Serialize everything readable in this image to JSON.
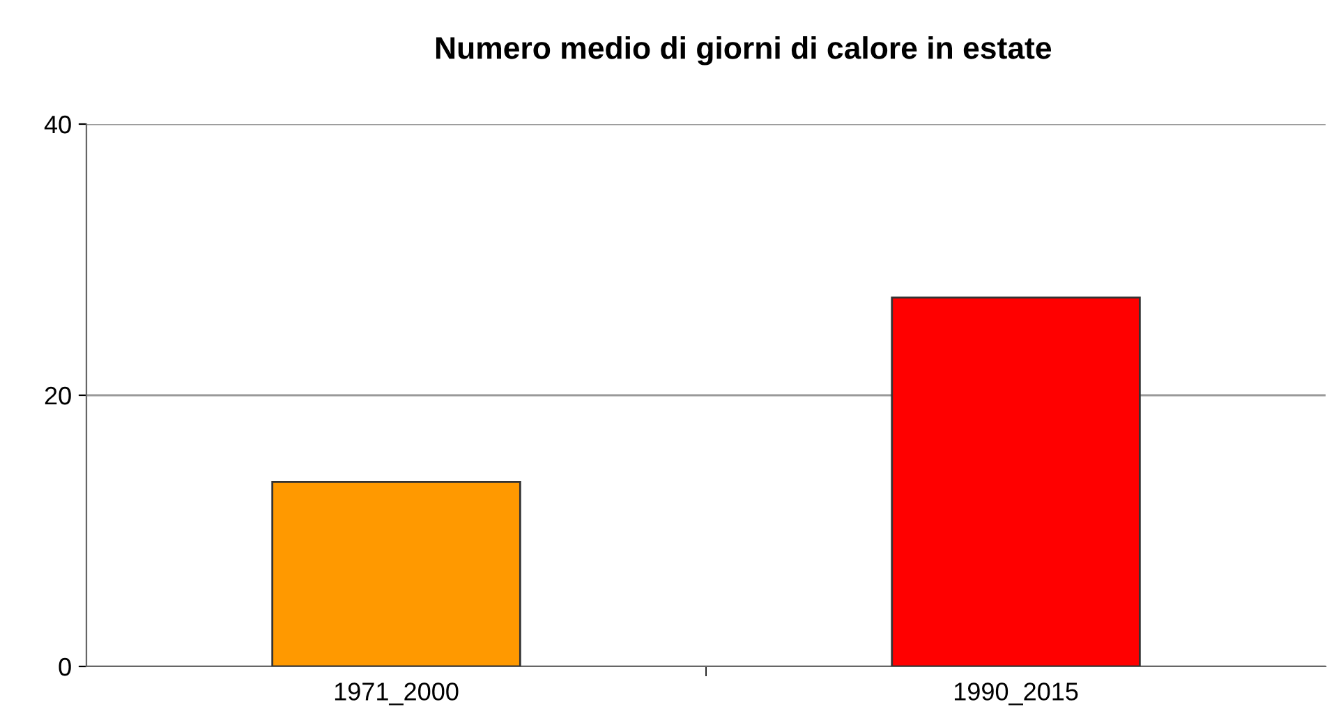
{
  "chart_data": {
    "type": "bar",
    "title": "Numero medio di giorni di calore in estate",
    "categories": [
      "1971_2000",
      "1990_2015"
    ],
    "values": [
      13.6,
      27.2
    ],
    "colors": [
      "#ff9900",
      "#ff0000"
    ],
    "ylim": [
      0,
      40
    ],
    "yticks": [
      0,
      20,
      40
    ],
    "grid": "y",
    "legend": false
  }
}
